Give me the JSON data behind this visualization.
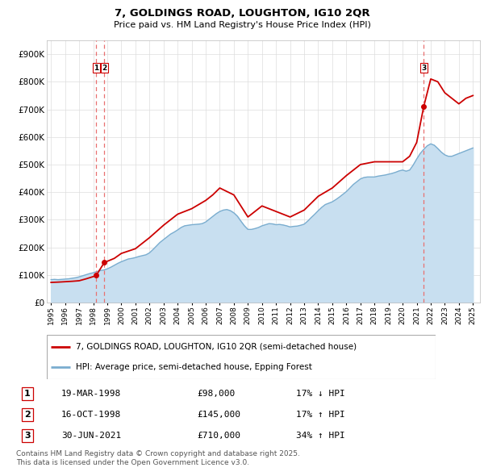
{
  "title_line1": "7, GOLDINGS ROAD, LOUGHTON, IG10 2QR",
  "title_line2": "Price paid vs. HM Land Registry's House Price Index (HPI)",
  "ylim": [
    0,
    950000
  ],
  "xlim_start": 1994.7,
  "xlim_end": 2025.5,
  "red_line_color": "#cc0000",
  "blue_line_color": "#7aadcf",
  "blue_fill_color": "#c8dff0",
  "dashed_line_color": "#e87070",
  "transaction_marker_color": "#cc0000",
  "label_red": "7, GOLDINGS ROAD, LOUGHTON, IG10 2QR (semi-detached house)",
  "label_blue": "HPI: Average price, semi-detached house, Epping Forest",
  "transactions": [
    {
      "num": 1,
      "date": "19-MAR-1998",
      "price": 98000,
      "pct": "17%",
      "dir": "↓",
      "x": 1998.21
    },
    {
      "num": 2,
      "date": "16-OCT-1998",
      "price": 145000,
      "pct": "17%",
      "dir": "↑",
      "x": 1998.79
    },
    {
      "num": 3,
      "date": "30-JUN-2021",
      "price": 710000,
      "pct": "34%",
      "dir": "↑",
      "x": 2021.5
    }
  ],
  "footnote_line1": "Contains HM Land Registry data © Crown copyright and database right 2025.",
  "footnote_line2": "This data is licensed under the Open Government Licence v3.0.",
  "background_color": "#ffffff",
  "plot_bg_color": "#ffffff",
  "grid_color": "#dddddd",
  "hpi_years": [
    1995.0,
    1995.25,
    1995.5,
    1995.75,
    1996.0,
    1996.25,
    1996.5,
    1996.75,
    1997.0,
    1997.25,
    1997.5,
    1997.75,
    1998.0,
    1998.25,
    1998.5,
    1998.75,
    1999.0,
    1999.25,
    1999.5,
    1999.75,
    2000.0,
    2000.25,
    2000.5,
    2000.75,
    2001.0,
    2001.25,
    2001.5,
    2001.75,
    2002.0,
    2002.25,
    2002.5,
    2002.75,
    2003.0,
    2003.25,
    2003.5,
    2003.75,
    2004.0,
    2004.25,
    2004.5,
    2004.75,
    2005.0,
    2005.25,
    2005.5,
    2005.75,
    2006.0,
    2006.25,
    2006.5,
    2006.75,
    2007.0,
    2007.25,
    2007.5,
    2007.75,
    2008.0,
    2008.25,
    2008.5,
    2008.75,
    2009.0,
    2009.25,
    2009.5,
    2009.75,
    2010.0,
    2010.25,
    2010.5,
    2010.75,
    2011.0,
    2011.25,
    2011.5,
    2011.75,
    2012.0,
    2012.25,
    2012.5,
    2012.75,
    2013.0,
    2013.25,
    2013.5,
    2013.75,
    2014.0,
    2014.25,
    2014.5,
    2014.75,
    2015.0,
    2015.25,
    2015.5,
    2015.75,
    2016.0,
    2016.25,
    2016.5,
    2016.75,
    2017.0,
    2017.25,
    2017.5,
    2017.75,
    2018.0,
    2018.25,
    2018.5,
    2018.75,
    2019.0,
    2019.25,
    2019.5,
    2019.75,
    2020.0,
    2020.25,
    2020.5,
    2020.75,
    2021.0,
    2021.25,
    2021.5,
    2021.75,
    2022.0,
    2022.25,
    2022.5,
    2022.75,
    2023.0,
    2023.25,
    2023.5,
    2023.75,
    2024.0,
    2024.25,
    2024.5,
    2024.75,
    2025.0
  ],
  "hpi_values": [
    83000,
    84000,
    83000,
    84000,
    85000,
    86000,
    88000,
    90000,
    93000,
    97000,
    101000,
    105000,
    108000,
    112000,
    116000,
    118000,
    122000,
    128000,
    135000,
    142000,
    148000,
    153000,
    158000,
    160000,
    163000,
    167000,
    170000,
    173000,
    180000,
    192000,
    205000,
    218000,
    228000,
    238000,
    248000,
    255000,
    263000,
    272000,
    278000,
    280000,
    282000,
    283000,
    284000,
    286000,
    292000,
    302000,
    312000,
    322000,
    330000,
    335000,
    337000,
    333000,
    325000,
    313000,
    295000,
    278000,
    265000,
    265000,
    268000,
    272000,
    278000,
    282000,
    286000,
    285000,
    282000,
    283000,
    281000,
    278000,
    274000,
    276000,
    277000,
    280000,
    284000,
    295000,
    308000,
    320000,
    333000,
    345000,
    355000,
    360000,
    365000,
    373000,
    382000,
    392000,
    402000,
    415000,
    428000,
    438000,
    448000,
    453000,
    455000,
    455000,
    455000,
    458000,
    460000,
    462000,
    465000,
    468000,
    472000,
    477000,
    480000,
    476000,
    480000,
    498000,
    520000,
    540000,
    555000,
    568000,
    575000,
    570000,
    558000,
    545000,
    535000,
    530000,
    530000,
    535000,
    540000,
    545000,
    550000,
    555000,
    560000
  ],
  "prop_years": [
    1995.0,
    1995.5,
    1996.0,
    1996.5,
    1997.0,
    1997.5,
    1997.75,
    1998.0,
    1998.21,
    1998.79,
    1999.5,
    2000.0,
    2001.0,
    2002.0,
    2003.0,
    2004.0,
    2005.0,
    2006.0,
    2006.5,
    2007.0,
    2008.0,
    2009.0,
    2009.5,
    2010.0,
    2011.0,
    2012.0,
    2013.0,
    2014.0,
    2015.0,
    2016.0,
    2017.0,
    2018.0,
    2019.0,
    2020.0,
    2020.5,
    2021.0,
    2021.5,
    2022.0,
    2022.5,
    2023.0,
    2023.5,
    2024.0,
    2024.5,
    2025.0
  ],
  "prop_values": [
    73000,
    74000,
    75500,
    77000,
    79000,
    86000,
    90000,
    94000,
    98000,
    145000,
    160000,
    178000,
    195000,
    235000,
    280000,
    320000,
    340000,
    370000,
    390000,
    415000,
    390000,
    310000,
    330000,
    350000,
    330000,
    310000,
    335000,
    385000,
    415000,
    460000,
    500000,
    510000,
    510000,
    510000,
    530000,
    580000,
    710000,
    810000,
    800000,
    760000,
    740000,
    720000,
    740000,
    750000
  ]
}
